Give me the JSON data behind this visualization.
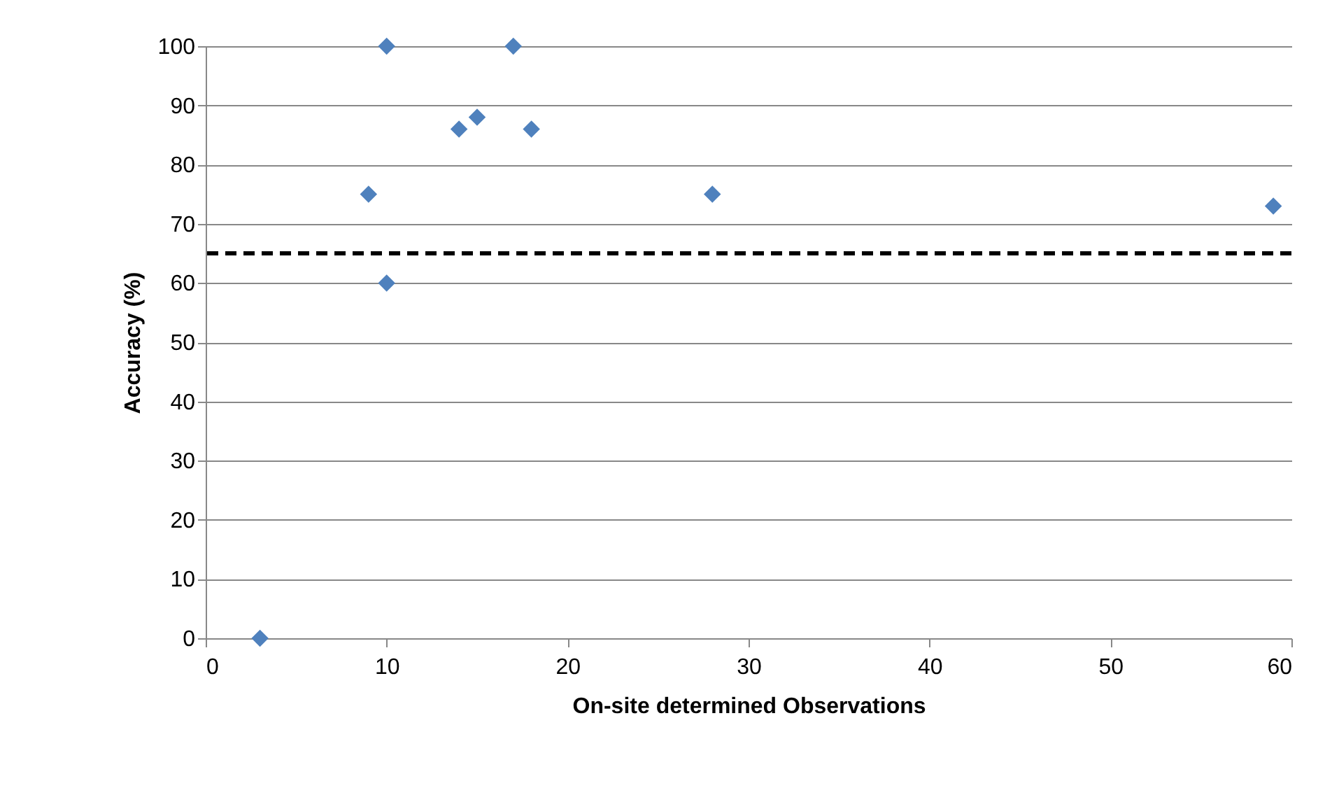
{
  "chart_data": {
    "type": "scatter",
    "xlabel": "On-site determined Observations",
    "ylabel": "Accuracy (%)",
    "x": [
      3,
      9,
      10,
      10,
      14,
      15,
      17,
      18,
      28,
      59
    ],
    "series": [
      {
        "color": "#4f81bd",
        "values": [
          0,
          75,
          100,
          60,
          86,
          88,
          100,
          86,
          75,
          73
        ]
      }
    ],
    "xlim": [
      0,
      60
    ],
    "xticks": [
      0,
      10,
      20,
      30,
      40,
      50,
      60
    ],
    "ylim": [
      0,
      100
    ],
    "yticks": [
      0,
      10,
      20,
      30,
      40,
      50,
      60,
      70,
      80,
      90,
      100
    ],
    "grid": "y",
    "marker": "diamond",
    "ref_lines": [
      {
        "axis": "y",
        "value": 65,
        "color": "#000000",
        "line_style": "dashed"
      }
    ]
  }
}
